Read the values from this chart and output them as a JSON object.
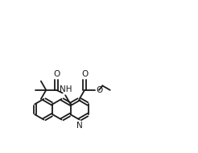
{
  "bg_color": "#ffffff",
  "line_color": "#1a1a1a",
  "line_width": 1.3,
  "figsize": [
    2.46,
    1.9
  ],
  "dpi": 100,
  "xlim": [
    0,
    10.5
  ],
  "ylim": [
    0,
    8.1
  ]
}
